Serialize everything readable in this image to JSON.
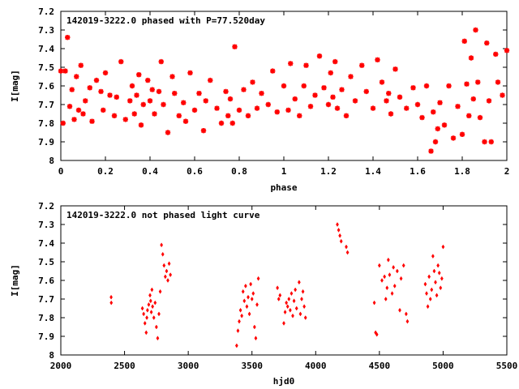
{
  "chart_data": [
    {
      "type": "scatter",
      "title": "142019-3222.0 phased with P=77.520day",
      "xlabel": "phase",
      "ylabel": "I[mag]",
      "xlim": [
        0,
        2
      ],
      "ylim": [
        8,
        7.2
      ],
      "y_inverted": true,
      "xticks": [
        "0",
        "0.2",
        "0.4",
        "0.6",
        "0.8",
        "1",
        "1.2",
        "1.4",
        "1.6",
        "1.8",
        "2"
      ],
      "yticks": [
        "7.2",
        "7.3",
        "7.4",
        "7.5",
        "7.6",
        "7.7",
        "7.8",
        "7.9",
        "8"
      ],
      "marker_color": "#ff0000",
      "series": [
        {
          "x": [
            0.0,
            0.01,
            0.02,
            0.03,
            0.04,
            0.05,
            0.06,
            0.07,
            0.08,
            0.09,
            0.1,
            0.11,
            0.13,
            0.14,
            0.16,
            0.18,
            0.19,
            0.2,
            0.22,
            0.24,
            0.25,
            0.27,
            0.29,
            0.31,
            0.32,
            0.33,
            0.34,
            0.35,
            0.36,
            0.37,
            0.39,
            0.4,
            0.41,
            0.42,
            0.44,
            0.45,
            0.46,
            0.48,
            0.5,
            0.51,
            0.53,
            0.55,
            0.56,
            0.58,
            0.6,
            0.62,
            0.64,
            0.65,
            0.67,
            0.7,
            0.72,
            0.74,
            0.75,
            0.76,
            0.77,
            0.78,
            0.8,
            0.82,
            0.84,
            0.86,
            0.88,
            0.9,
            0.93,
            0.95,
            0.97,
            1.0,
            1.02,
            1.03,
            1.05,
            1.07,
            1.09,
            1.1,
            1.12,
            1.14,
            1.16,
            1.18,
            1.2,
            1.21,
            1.22,
            1.23,
            1.24,
            1.26,
            1.28,
            1.3,
            1.32,
            1.35,
            1.37,
            1.4,
            1.42,
            1.44,
            1.46,
            1.47,
            1.48,
            1.5,
            1.52,
            1.55,
            1.58,
            1.6,
            1.62,
            1.64,
            1.66,
            1.67,
            1.68,
            1.69,
            1.7,
            1.72,
            1.74,
            1.76,
            1.78,
            1.8,
            1.81,
            1.82,
            1.83,
            1.84,
            1.85,
            1.86,
            1.87,
            1.88,
            1.9,
            1.91,
            1.92,
            1.93,
            1.95,
            1.96,
            1.98,
            2.0
          ],
          "y": [
            7.52,
            7.8,
            7.52,
            7.34,
            7.71,
            7.62,
            7.78,
            7.55,
            7.73,
            7.49,
            7.75,
            7.68,
            7.61,
            7.79,
            7.57,
            7.63,
            7.73,
            7.53,
            7.65,
            7.76,
            7.66,
            7.47,
            7.78,
            7.68,
            7.6,
            7.75,
            7.65,
            7.54,
            7.81,
            7.7,
            7.57,
            7.68,
            7.62,
            7.75,
            7.63,
            7.47,
            7.7,
            7.85,
            7.55,
            7.64,
            7.76,
            7.69,
            7.79,
            7.53,
            7.73,
            7.64,
            7.84,
            7.68,
            7.57,
            7.72,
            7.8,
            7.63,
            7.76,
            7.67,
            7.8,
            7.39,
            7.73,
            7.62,
            7.76,
            7.58,
            7.72,
            7.64,
            7.7,
            7.52,
            7.74,
            7.6,
            7.73,
            7.48,
            7.67,
            7.76,
            7.6,
            7.49,
            7.71,
            7.65,
            7.44,
            7.61,
            7.7,
            7.53,
            7.66,
            7.47,
            7.72,
            7.62,
            7.76,
            7.55,
            7.68,
            7.49,
            7.63,
            7.72,
            7.46,
            7.58,
            7.68,
            7.64,
            7.75,
            7.51,
            7.66,
            7.72,
            7.61,
            7.7,
            7.77,
            7.6,
            7.95,
            7.74,
            7.9,
            7.83,
            7.69,
            7.81,
            7.6,
            7.88,
            7.71,
            7.86,
            7.36,
            7.59,
            7.76,
            7.45,
            7.67,
            7.3,
            7.58,
            7.77,
            7.9,
            7.37,
            7.68,
            7.9,
            7.43,
            7.58,
            7.65,
            7.41
          ]
        }
      ]
    },
    {
      "type": "scatter",
      "title": "142019-3222.0 not phased light curve",
      "xlabel": "hjd0",
      "ylabel": "I[mag]",
      "xlim": [
        2000,
        5500
      ],
      "ylim": [
        8,
        7.2
      ],
      "y_inverted": true,
      "xticks": [
        "2000",
        "2500",
        "3000",
        "3500",
        "4000",
        "4500",
        "5000",
        "5500"
      ],
      "yticks": [
        "7.2",
        "7.3",
        "7.4",
        "7.5",
        "7.6",
        "7.7",
        "7.8",
        "7.9",
        "8"
      ],
      "marker_color": "#ff0000",
      "series": [
        {
          "x": [
            2395,
            2396,
            2640,
            2650,
            2660,
            2670,
            2675,
            2680,
            2690,
            2700,
            2705,
            2710,
            2715,
            2720,
            2730,
            2740,
            2750,
            2760,
            2770,
            2780,
            2790,
            2800,
            2810,
            2820,
            2830,
            2840,
            2850,
            2860,
            3380,
            3390,
            3400,
            3410,
            3420,
            3430,
            3440,
            3450,
            3460,
            3470,
            3480,
            3490,
            3500,
            3510,
            3520,
            3530,
            3540,
            3550,
            3700,
            3710,
            3720,
            3750,
            3760,
            3770,
            3780,
            3790,
            3800,
            3810,
            3820,
            3830,
            3840,
            3850,
            3870,
            3880,
            3890,
            3900,
            3910,
            3920,
            4170,
            4180,
            4190,
            4200,
            4240,
            4250,
            4460,
            4470,
            4480,
            4500,
            4520,
            4540,
            4550,
            4560,
            4570,
            4580,
            4600,
            4610,
            4620,
            4640,
            4660,
            4670,
            4690,
            4710,
            4720,
            4860,
            4870,
            4880,
            4890,
            4900,
            4910,
            4920,
            4930,
            4940,
            4950,
            4960,
            4970,
            4980,
            4990,
            5000
          ],
          "y": [
            7.69,
            7.72,
            7.75,
            7.78,
            7.83,
            7.88,
            7.8,
            7.76,
            7.73,
            7.68,
            7.71,
            7.77,
            7.65,
            7.74,
            7.8,
            7.72,
            7.85,
            7.91,
            7.78,
            7.66,
            7.41,
            7.46,
            7.52,
            7.58,
            7.55,
            7.6,
            7.51,
            7.57,
            7.95,
            7.87,
            7.82,
            7.76,
            7.79,
            7.66,
            7.71,
            7.63,
            7.74,
            7.69,
            7.78,
            7.62,
            7.7,
            7.67,
            7.85,
            7.91,
            7.73,
            7.59,
            7.64,
            7.7,
            7.68,
            7.83,
            7.77,
            7.72,
            7.74,
            7.7,
            7.76,
            7.67,
            7.79,
            7.71,
            7.65,
            7.75,
            7.61,
            7.78,
            7.7,
            7.66,
            7.74,
            7.8,
            7.3,
            7.33,
            7.36,
            7.39,
            7.42,
            7.45,
            7.72,
            7.88,
            7.89,
            7.52,
            7.6,
            7.58,
            7.7,
            7.64,
            7.49,
            7.57,
            7.67,
            7.53,
            7.63,
            7.55,
            7.76,
            7.59,
            7.52,
            7.78,
            7.82,
            7.62,
            7.67,
            7.74,
            7.58,
            7.7,
            7.65,
            7.47,
            7.55,
            7.61,
            7.68,
            7.52,
            7.56,
            7.64,
            7.59,
            7.42
          ]
        }
      ]
    }
  ]
}
